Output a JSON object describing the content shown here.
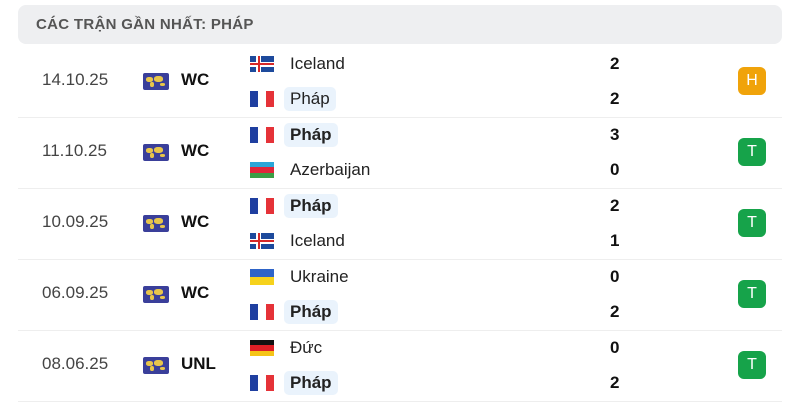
{
  "header": {
    "title": "CÁC TRẬN GẦN NHẤT: PHÁP"
  },
  "colors": {
    "draw": "#f0a30a",
    "win": "#16a34a"
  },
  "matches": [
    {
      "date": "14.10.25",
      "competition": "WC",
      "home": {
        "name": "Iceland",
        "flag": "iceland",
        "score": "2"
      },
      "away": {
        "name": "Pháp",
        "flag": "france",
        "score": "2"
      },
      "result": "H"
    },
    {
      "date": "11.10.25",
      "competition": "WC",
      "home": {
        "name": "Pháp",
        "flag": "france",
        "score": "3"
      },
      "away": {
        "name": "Azerbaijan",
        "flag": "azerbaijan",
        "score": "0"
      },
      "result": "T"
    },
    {
      "date": "10.09.25",
      "competition": "WC",
      "home": {
        "name": "Pháp",
        "flag": "france",
        "score": "2"
      },
      "away": {
        "name": "Iceland",
        "flag": "iceland",
        "score": "1"
      },
      "result": "T"
    },
    {
      "date": "06.09.25",
      "competition": "WC",
      "home": {
        "name": "Ukraine",
        "flag": "ukraine",
        "score": "0"
      },
      "away": {
        "name": "Pháp",
        "flag": "france",
        "score": "2"
      },
      "result": "T"
    },
    {
      "date": "08.06.25",
      "competition": "UNL",
      "home": {
        "name": "Đức",
        "flag": "germany",
        "score": "0"
      },
      "away": {
        "name": "Pháp",
        "flag": "france",
        "score": "2"
      },
      "result": "T"
    }
  ]
}
